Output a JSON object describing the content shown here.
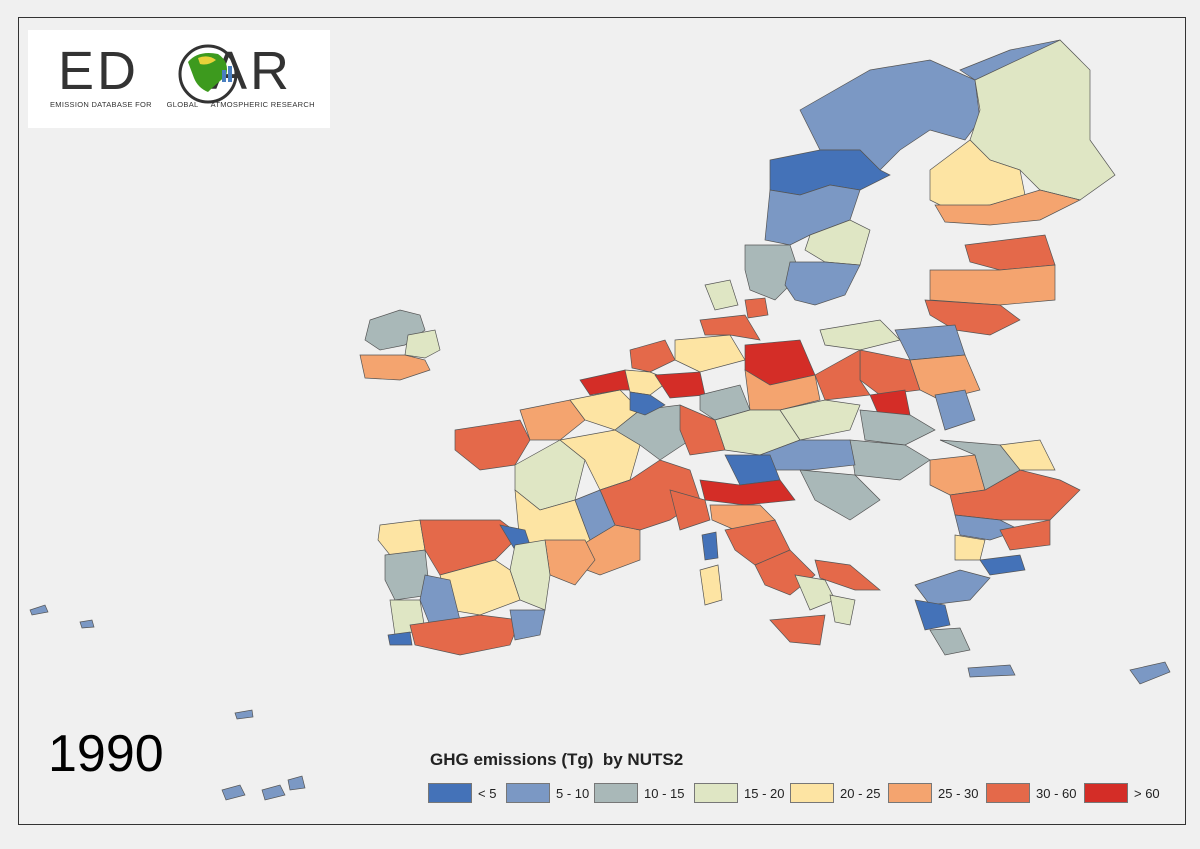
{
  "logo": {
    "letters_left": "ED",
    "letters_right": "AR",
    "subtitle_left": "EMISSION DATABASE FOR",
    "subtitle_mid": "GLOBAL",
    "subtitle_right": "ATMOSPHERIC RESEARCH"
  },
  "year": "1990",
  "legend": {
    "title": "GHG emissions (Tg)  by NUTS2",
    "classes": [
      {
        "label": "< 5",
        "color": "#4472b8"
      },
      {
        "label": "5 - 10",
        "color": "#7b98c4"
      },
      {
        "label": "10 - 15",
        "color": "#a9b8b8"
      },
      {
        "label": "15 - 20",
        "color": "#dfe6c4"
      },
      {
        "label": "20 - 25",
        "color": "#fde4a3"
      },
      {
        "label": "25 - 30",
        "color": "#f4a46f"
      },
      {
        "label": "30 - 60",
        "color": "#e4694a"
      },
      {
        "label": "> 60",
        "color": "#d42d27"
      }
    ]
  }
}
